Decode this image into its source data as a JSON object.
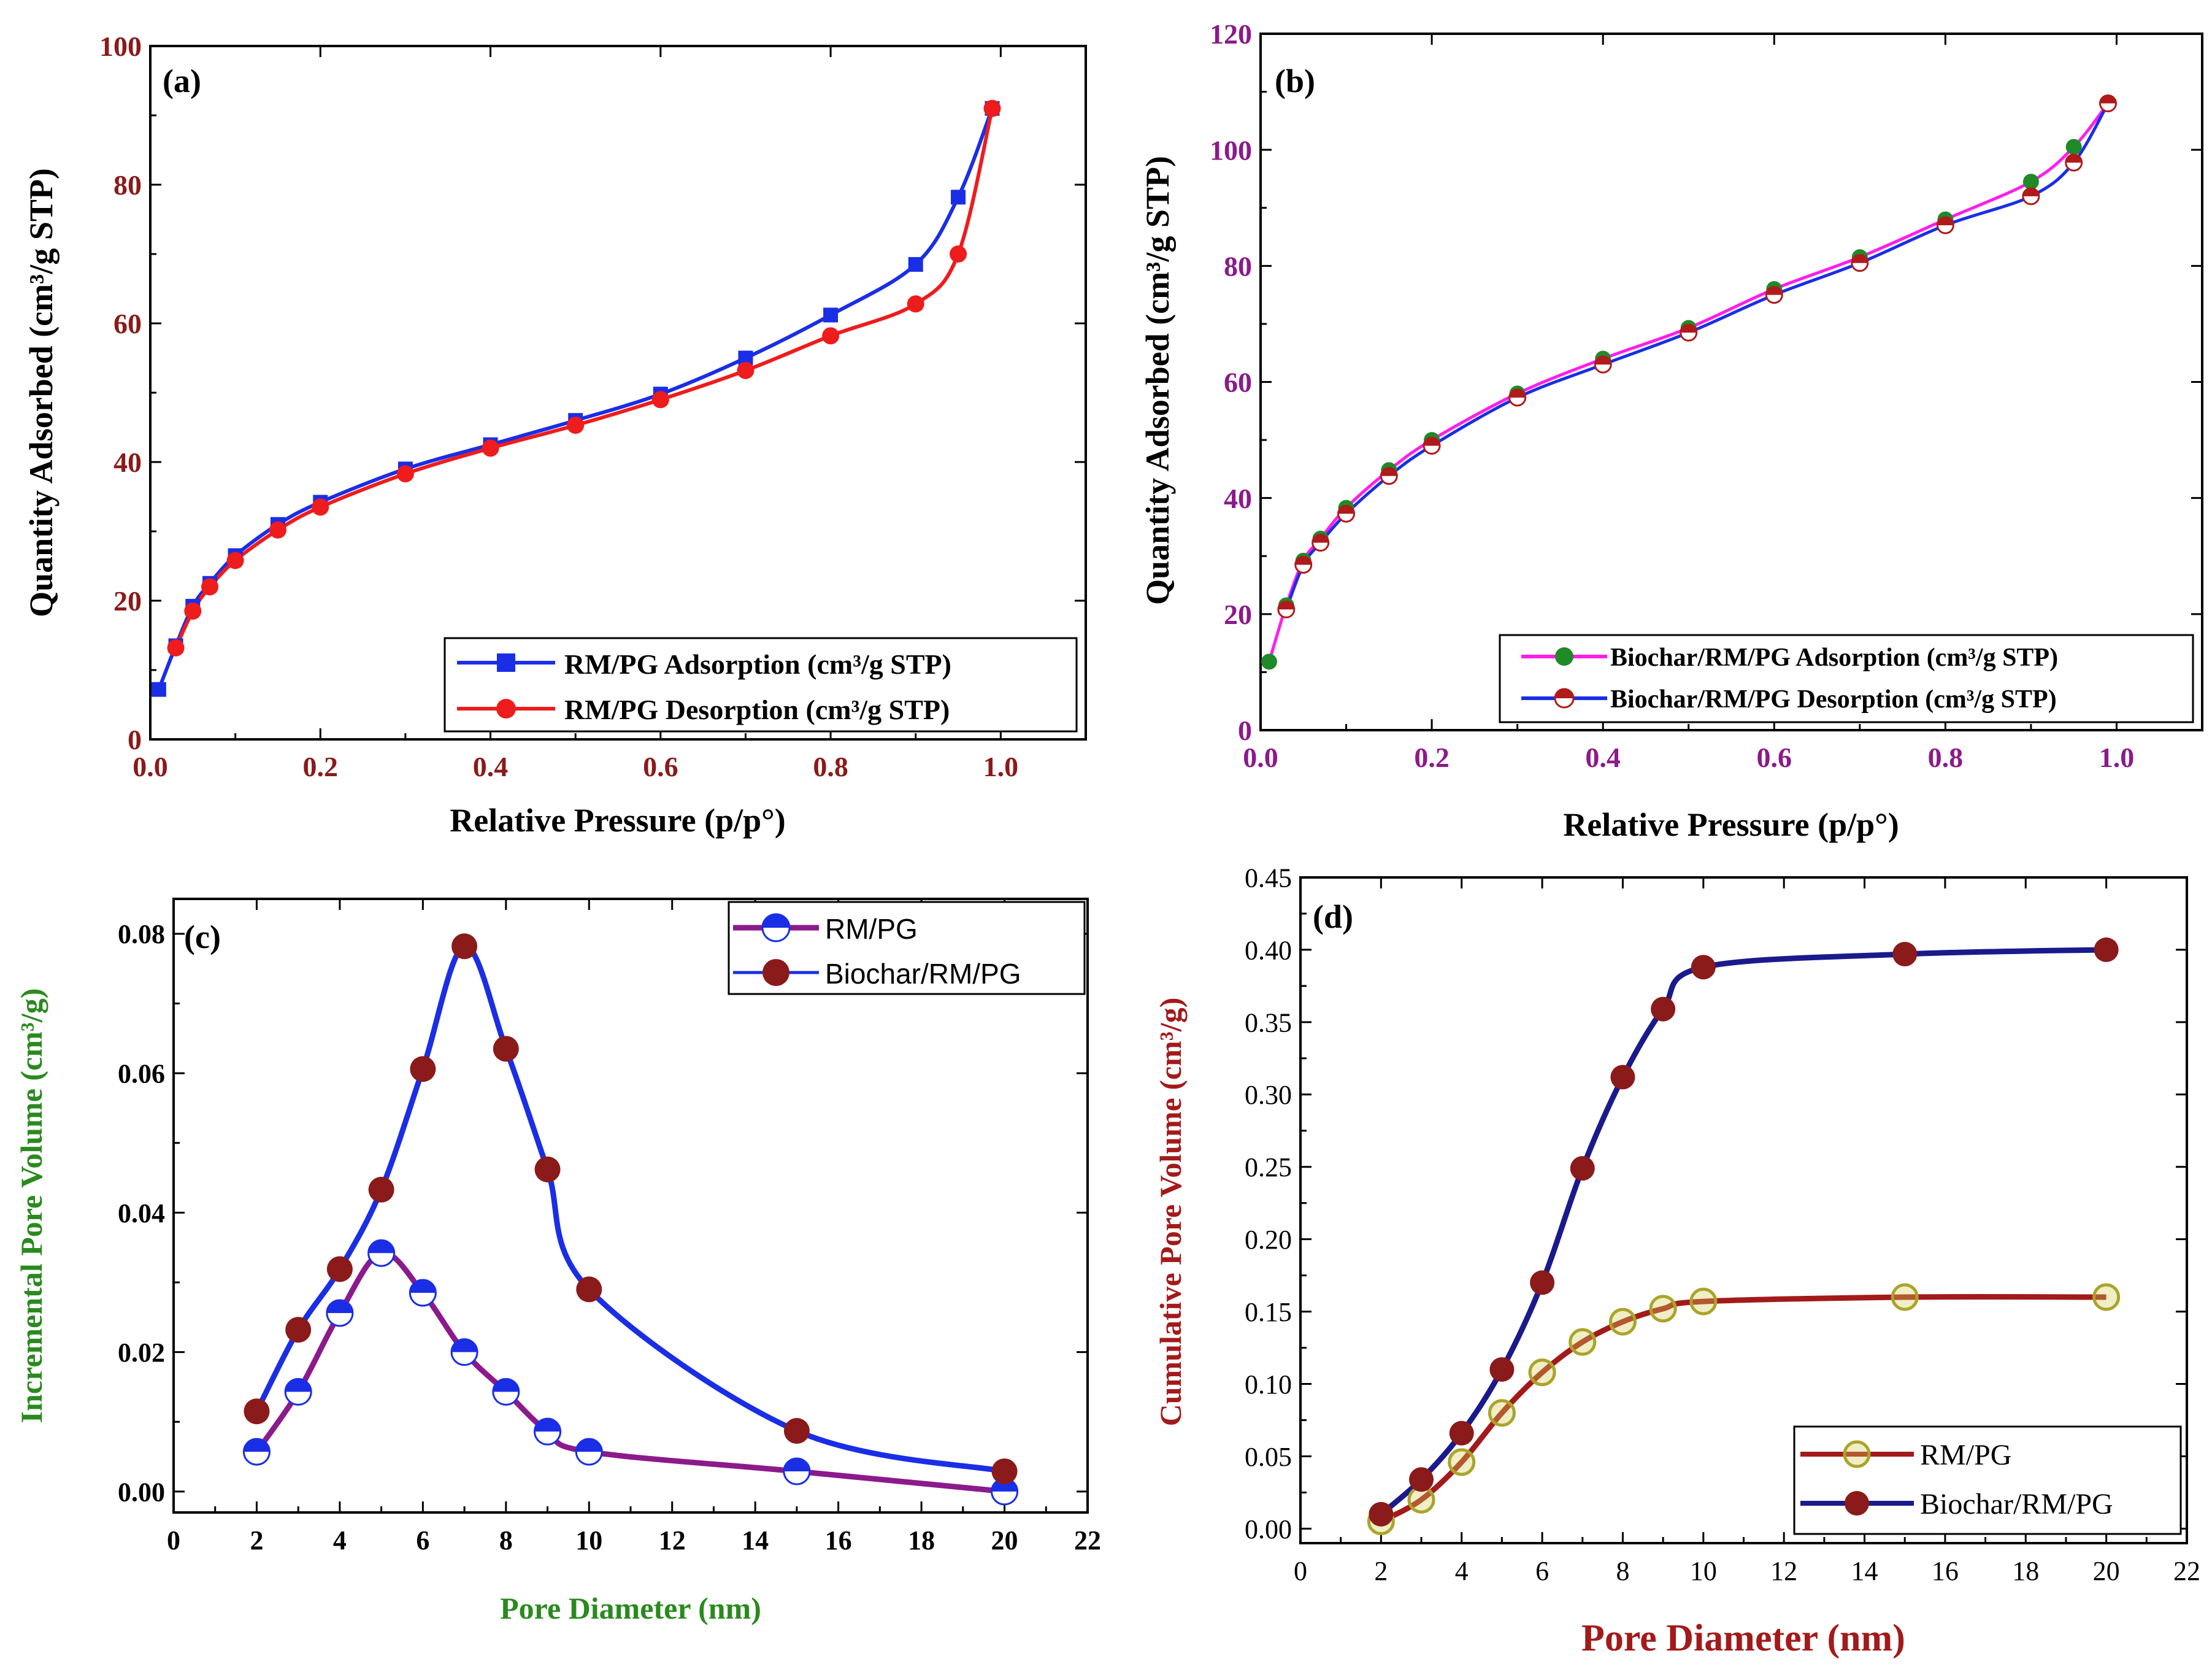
{
  "chart_data": [
    {
      "panel": "(a)",
      "type": "line",
      "xlabel": "Relative Pressure (p/p°)",
      "ylabel": "Quantity Adsorbed (cm³/g STP)",
      "xlim": [
        0.0,
        1.1
      ],
      "ylim": [
        0,
        100
      ],
      "xticks": [
        0.0,
        0.2,
        0.4,
        0.6,
        0.8,
        1.0
      ],
      "xtick_labels": [
        "0.0",
        "0.2",
        "0.4",
        "0.6",
        "0.8",
        "1.0"
      ],
      "yticks": [
        0,
        20,
        40,
        60,
        80,
        100
      ],
      "ytick_labels": [
        "0",
        "20",
        "40",
        "60",
        "80",
        "100"
      ],
      "legend_position": "bottom-right",
      "series": [
        {
          "name": "RM/PG Adsorption (cm³/g STP)",
          "color": "#1a2ee6",
          "marker": "square",
          "x": [
            0.01,
            0.03,
            0.05,
            0.07,
            0.1,
            0.15,
            0.2,
            0.3,
            0.4,
            0.5,
            0.6,
            0.7,
            0.8,
            0.9,
            0.95,
            0.99
          ],
          "y": [
            7.2,
            13.5,
            19.2,
            22.5,
            26.5,
            31.0,
            34.2,
            39.0,
            42.5,
            46.0,
            49.8,
            55.0,
            61.2,
            68.5,
            78.2,
            91.0
          ]
        },
        {
          "name": "RM/PG Desorption (cm³/g STP)",
          "color": "#ee1c1c",
          "marker": "circle",
          "x": [
            0.03,
            0.05,
            0.07,
            0.1,
            0.15,
            0.2,
            0.3,
            0.4,
            0.5,
            0.6,
            0.7,
            0.8,
            0.9,
            0.95,
            0.99
          ],
          "y": [
            13.2,
            18.5,
            22.0,
            25.8,
            30.2,
            33.5,
            38.3,
            42.0,
            45.3,
            49.0,
            53.2,
            58.2,
            62.8,
            70.0,
            91.0
          ]
        }
      ]
    },
    {
      "panel": "(b)",
      "type": "line",
      "xlabel": "Relative Pressure (p/p°)",
      "ylabel": "Quantity Adsorbed (cm³/g STP)",
      "xlim": [
        0.0,
        1.1
      ],
      "ylim": [
        0,
        120
      ],
      "xticks": [
        0.0,
        0.2,
        0.4,
        0.6,
        0.8,
        1.0
      ],
      "xtick_labels": [
        "0.0",
        "0.2",
        "0.4",
        "0.6",
        "0.8",
        "1.0"
      ],
      "yticks": [
        0,
        20,
        40,
        60,
        80,
        100,
        120
      ],
      "ytick_labels": [
        "0",
        "20",
        "40",
        "60",
        "80",
        "100",
        "120"
      ],
      "legend_position": "bottom-right",
      "series": [
        {
          "name": "Biochar/RM/PG Adsorption (cm³/g STP)",
          "color": "#ff1ee8",
          "marker_color": "#1f8a28",
          "marker": "circle",
          "x": [
            0.01,
            0.03,
            0.05,
            0.07,
            0.1,
            0.15,
            0.2,
            0.3,
            0.4,
            0.5,
            0.6,
            0.7,
            0.8,
            0.9,
            0.95,
            0.99
          ],
          "y": [
            11.8,
            21.5,
            29.2,
            33.0,
            38.3,
            44.8,
            50.0,
            58.0,
            64.0,
            69.3,
            76.0,
            81.5,
            88.0,
            94.5,
            100.5,
            108.0
          ]
        },
        {
          "name": "Biochar/RM/PG Desorption (cm³/g STP)",
          "color": "#1a2ee6",
          "marker_color": "#b01a1a",
          "marker": "half-circle",
          "x": [
            0.03,
            0.05,
            0.07,
            0.1,
            0.15,
            0.2,
            0.3,
            0.4,
            0.5,
            0.6,
            0.7,
            0.8,
            0.9,
            0.95,
            0.99
          ],
          "y": [
            20.8,
            28.5,
            32.3,
            37.3,
            43.8,
            49.0,
            57.3,
            63.0,
            68.5,
            75.0,
            80.5,
            87.0,
            92.0,
            97.8,
            108.0
          ]
        }
      ]
    },
    {
      "panel": "(c)",
      "type": "line",
      "xlabel": "Pore Diameter (nm)",
      "ylabel": "Incremental Pore Volume (cm³/g)",
      "xlim": [
        0,
        22
      ],
      "ylim": [
        -0.003,
        0.085
      ],
      "xticks": [
        0,
        2,
        4,
        6,
        8,
        10,
        12,
        14,
        16,
        18,
        20,
        22
      ],
      "xtick_labels": [
        "0",
        "2",
        "4",
        "6",
        "8",
        "10",
        "12",
        "14",
        "16",
        "18",
        "20",
        "22"
      ],
      "yticks": [
        0.0,
        0.02,
        0.04,
        0.06,
        0.08
      ],
      "ytick_labels": [
        "0.00",
        "0.02",
        "0.04",
        "0.06",
        "0.08"
      ],
      "legend_position": "top-right",
      "series": [
        {
          "name": "RM/PG",
          "color": "#8b1a8b",
          "marker_color": "#1a2ee6",
          "marker": "half-circle",
          "x": [
            2,
            3,
            4,
            5,
            6,
            7,
            8,
            9,
            10,
            15,
            20
          ],
          "y": [
            0.0057,
            0.0143,
            0.0256,
            0.0342,
            0.0285,
            0.02,
            0.0143,
            0.0086,
            0.0057,
            0.0029,
            0.0
          ]
        },
        {
          "name": "Biochar/RM/PG",
          "color": "#1a2ee6",
          "marker_color": "#8b1a1a",
          "marker": "circle",
          "x": [
            2,
            3,
            4,
            5,
            6,
            7,
            8,
            9,
            10,
            15,
            20
          ],
          "y": [
            0.0115,
            0.0232,
            0.0319,
            0.0433,
            0.0606,
            0.0782,
            0.0635,
            0.0462,
            0.029,
            0.0087,
            0.0029
          ]
        }
      ]
    },
    {
      "panel": "(d)",
      "type": "line",
      "xlabel": "Pore Diameter (nm)",
      "ylabel": "Cumulative Pore Volume (cm³/g)",
      "xlim": [
        0,
        22
      ],
      "ylim": [
        -0.01,
        0.45
      ],
      "xticks": [
        0,
        2,
        4,
        6,
        8,
        10,
        12,
        14,
        16,
        18,
        20,
        22
      ],
      "xtick_labels": [
        "0",
        "2",
        "4",
        "6",
        "8",
        "10",
        "12",
        "14",
        "16",
        "18",
        "20",
        "22"
      ],
      "yticks": [
        0.0,
        0.05,
        0.1,
        0.15,
        0.2,
        0.25,
        0.3,
        0.35,
        0.4,
        0.45
      ],
      "ytick_labels": [
        "0.00",
        "0.05",
        "0.10",
        "0.15",
        "0.20",
        "0.25",
        "0.30",
        "0.35",
        "0.40",
        "0.45"
      ],
      "legend_position": "bottom-right",
      "series": [
        {
          "name": "RM/PG",
          "color": "#a31a1a",
          "marker_color": "#d4cf5a",
          "marker": "circle-open",
          "x": [
            2,
            3,
            4,
            5,
            6,
            7,
            8,
            9,
            10,
            15,
            20
          ],
          "y": [
            0.005,
            0.02,
            0.046,
            0.08,
            0.108,
            0.129,
            0.143,
            0.152,
            0.157,
            0.16,
            0.16
          ]
        },
        {
          "name": "Biochar/RM/PG",
          "color": "#1a1a8c",
          "marker_color": "#8b1a1a",
          "marker": "circle",
          "x": [
            2,
            3,
            4,
            5,
            6,
            7,
            8,
            9,
            10,
            15,
            20
          ],
          "y": [
            0.01,
            0.034,
            0.066,
            0.11,
            0.17,
            0.249,
            0.312,
            0.359,
            0.388,
            0.397,
            0.4
          ]
        }
      ]
    }
  ],
  "style": {
    "a_axis_color": "#8b1a1a",
    "b_axis_color": "#8b1a8b",
    "c_label_color": "#2a8a1e",
    "d_label_color": "#a31a1a",
    "text_color": "#000000"
  }
}
